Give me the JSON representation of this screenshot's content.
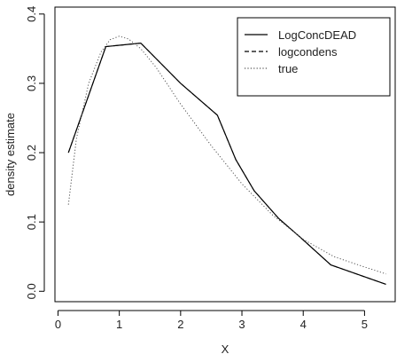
{
  "chart_data": {
    "type": "line",
    "xlabel": "X",
    "ylabel": "density estimate",
    "xlim": [
      -0.05,
      5.5
    ],
    "ylim": [
      -0.015,
      0.41
    ],
    "xticks": [
      0,
      1,
      2,
      3,
      4,
      5
    ],
    "yticks": [
      0.0,
      0.1,
      0.2,
      0.3,
      0.4
    ],
    "ytick_labels": [
      "0.0",
      "0.1",
      "0.2",
      "0.3",
      "0.4"
    ],
    "legend_position": "top-right",
    "series": [
      {
        "name": "LogConcDEAD",
        "style": "solid",
        "color": "#000000",
        "x": [
          0.17,
          0.78,
          1.35,
          2.0,
          2.6,
          2.9,
          3.2,
          3.6,
          3.95,
          4.45,
          5.35
        ],
        "y": [
          0.2,
          0.353,
          0.358,
          0.3,
          0.254,
          0.19,
          0.145,
          0.105,
          0.078,
          0.038,
          0.01
        ]
      },
      {
        "name": "logcondens",
        "style": "dashed",
        "color": "#000000",
        "x": [
          0.17,
          0.78,
          1.35,
          2.0,
          2.6,
          2.9,
          3.2,
          3.6,
          3.95,
          4.45,
          5.35
        ],
        "y": [
          0.2,
          0.353,
          0.358,
          0.3,
          0.254,
          0.19,
          0.145,
          0.105,
          0.078,
          0.038,
          0.01
        ]
      },
      {
        "name": "true",
        "style": "dotted",
        "color": "#555555",
        "x": [
          0.17,
          0.3,
          0.5,
          0.7,
          0.85,
          1.0,
          1.15,
          1.35,
          1.6,
          2.0,
          2.5,
          3.0,
          3.5,
          4.0,
          4.5,
          5.0,
          5.35
        ],
        "y": [
          0.125,
          0.22,
          0.3,
          0.345,
          0.363,
          0.368,
          0.364,
          0.35,
          0.323,
          0.27,
          0.21,
          0.155,
          0.11,
          0.075,
          0.05,
          0.035,
          0.025
        ]
      }
    ]
  }
}
